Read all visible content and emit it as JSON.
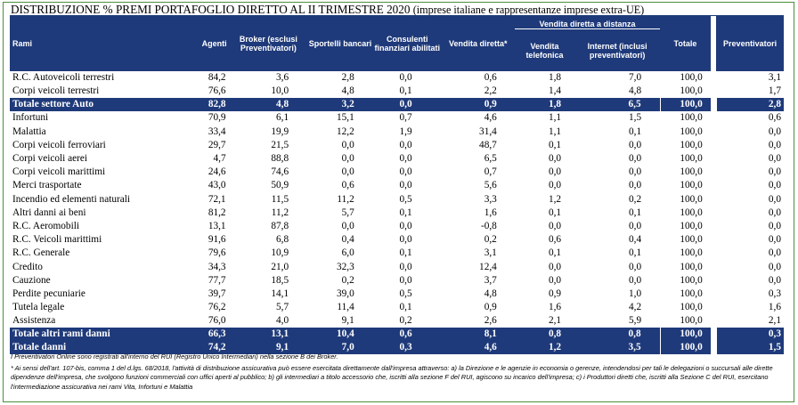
{
  "title": {
    "main": "DISTRIBUZIONE % PREMI PORTAFOGLIO DIRETTO AL II TRIMESTRE 2020",
    "subtitle": "(imprese italiane e rappresentanze imprese extra-UE)"
  },
  "header": {
    "group": "Vendita diretta a distanza",
    "rami": "Rami",
    "agenti": "Agenti",
    "broker": "Broker (esclusi Preventivatori)",
    "sportelli": "Sportelli bancari",
    "consulenti": "Consulenti finanziari abilitati",
    "vendita_diretta": "Vendita diretta*",
    "vendita_telefonica": "Vendita telefonica",
    "internet": "Internet (inclusi preventivatori)",
    "totale": "Totale",
    "preventivatori": "Preventivatori"
  },
  "rows": [
    {
      "label": "R.C. Autoveicoli terrestri",
      "v": [
        "84,2",
        "3,6",
        "2,8",
        "0,0",
        "0,6",
        "1,8",
        "7,0",
        "100,0",
        "3,1"
      ]
    },
    {
      "label": "Corpi veicoli terrestri",
      "v": [
        "76,6",
        "10,0",
        "4,8",
        "0,1",
        "2,2",
        "1,4",
        "4,8",
        "100,0",
        "1,7"
      ]
    },
    {
      "label": "Totale settore Auto",
      "total": true,
      "v": [
        "82,8",
        "4,8",
        "3,2",
        "0,0",
        "0,9",
        "1,8",
        "6,5",
        "100,0",
        "2,8"
      ]
    },
    {
      "label": "Infortuni",
      "v": [
        "70,9",
        "6,1",
        "15,1",
        "0,7",
        "4,6",
        "1,1",
        "1,5",
        "100,0",
        "0,6"
      ]
    },
    {
      "label": "Malattia",
      "v": [
        "33,4",
        "19,9",
        "12,2",
        "1,9",
        "31,4",
        "1,1",
        "0,1",
        "100,0",
        "0,0"
      ]
    },
    {
      "label": "Corpi veicoli ferroviari",
      "v": [
        "29,7",
        "21,5",
        "0,0",
        "0,0",
        "48,7",
        "0,1",
        "0,0",
        "100,0",
        "0,0"
      ]
    },
    {
      "label": "Corpi veicoli aerei",
      "v": [
        "4,7",
        "88,8",
        "0,0",
        "0,0",
        "6,5",
        "0,0",
        "0,0",
        "100,0",
        "0,0"
      ]
    },
    {
      "label": "Corpi veicoli marittimi",
      "v": [
        "24,6",
        "74,6",
        "0,0",
        "0,0",
        "0,7",
        "0,0",
        "0,0",
        "100,0",
        "0,0"
      ]
    },
    {
      "label": "Merci trasportate",
      "v": [
        "43,0",
        "50,9",
        "0,6",
        "0,0",
        "5,6",
        "0,0",
        "0,0",
        "100,0",
        "0,0"
      ]
    },
    {
      "label": "Incendio ed elementi naturali",
      "v": [
        "72,1",
        "11,5",
        "11,2",
        "0,5",
        "3,3",
        "1,2",
        "0,2",
        "100,0",
        "0,0"
      ]
    },
    {
      "label": "Altri danni ai beni",
      "v": [
        "81,2",
        "11,2",
        "5,7",
        "0,1",
        "1,6",
        "0,1",
        "0,1",
        "100,0",
        "0,0"
      ]
    },
    {
      "label": "R.C. Aeromobili",
      "v": [
        "13,1",
        "87,8",
        "0,0",
        "0,0",
        "-0,8",
        "0,0",
        "0,0",
        "100,0",
        "0,0"
      ]
    },
    {
      "label": "R.C. Veicoli marittimi",
      "v": [
        "91,6",
        "6,8",
        "0,4",
        "0,0",
        "0,2",
        "0,6",
        "0,4",
        "100,0",
        "0,0"
      ]
    },
    {
      "label": "R.C. Generale",
      "v": [
        "79,6",
        "10,9",
        "6,0",
        "0,1",
        "3,1",
        "0,1",
        "0,1",
        "100,0",
        "0,0"
      ]
    },
    {
      "label": "Credito",
      "v": [
        "34,3",
        "21,0",
        "32,3",
        "0,0",
        "12,4",
        "0,0",
        "0,0",
        "100,0",
        "0,0"
      ]
    },
    {
      "label": "Cauzione",
      "v": [
        "77,7",
        "18,5",
        "0,2",
        "0,0",
        "3,7",
        "0,0",
        "0,0",
        "100,0",
        "0,0"
      ]
    },
    {
      "label": "Perdite pecuniarie",
      "v": [
        "39,7",
        "14,1",
        "39,0",
        "0,5",
        "4,8",
        "0,9",
        "1,0",
        "100,0",
        "0,3"
      ]
    },
    {
      "label": "Tutela legale",
      "v": [
        "76,2",
        "5,7",
        "11,4",
        "0,1",
        "0,9",
        "1,6",
        "4,2",
        "100,0",
        "1,6"
      ]
    },
    {
      "label": "Assistenza",
      "v": [
        "76,0",
        "4,0",
        "9,1",
        "0,2",
        "2,6",
        "2,1",
        "5,9",
        "100,0",
        "2,1"
      ]
    },
    {
      "label": "Totale altri rami danni",
      "total": true,
      "v": [
        "66,3",
        "13,1",
        "10,4",
        "0,6",
        "8,1",
        "0,8",
        "0,8",
        "100,0",
        "0,3"
      ]
    },
    {
      "label": "Totale danni",
      "total": true,
      "v": [
        "74,2",
        "9,1",
        "7,0",
        "0,3",
        "4,6",
        "1,2",
        "3,5",
        "100,0",
        "1,5"
      ]
    }
  ],
  "notes": {
    "note1": "I Preventivatori Online sono registrati all'interno del RUI (Registro Unico Intermediari) nella sezione B dei Broker.",
    "note2": "* Ai sensi dell'art. 107-bis, comma 1 del d.lgs. 68/2018, l'attività di distribuzione assicurativa può essere esercitata direttamente dall'impresa attraverso: a) la Direzione e le agenzie in economia o gerenze, intendendosi per tali le delegazioni o succursali alle dirette dipendenze dell'impresa, che svolgono funzioni commerciali con uffici aperti al pubblico; b) gli intermediari a titolo accessorio che, iscritti alla sezione F del RUI, agiscono su incarico dell'impresa; c) i Produttori diretti che, iscritti alla Sezione C del RUI, esercitano l'intermediazione assicurativa nei rami Vita, Infortuni e Malattia"
  },
  "colors": {
    "header_bg": "#1f3a7a",
    "frame": "#4a8f3a"
  }
}
